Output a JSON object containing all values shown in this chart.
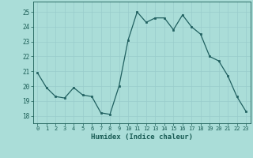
{
  "x": [
    0,
    1,
    2,
    3,
    4,
    5,
    6,
    7,
    8,
    9,
    10,
    11,
    12,
    13,
    14,
    15,
    16,
    17,
    18,
    19,
    20,
    21,
    22,
    23
  ],
  "y": [
    20.9,
    19.9,
    19.3,
    19.2,
    19.9,
    19.4,
    19.3,
    18.2,
    18.1,
    20.0,
    23.1,
    25.0,
    24.3,
    24.6,
    24.6,
    23.8,
    24.8,
    24.0,
    23.5,
    22.0,
    21.7,
    20.7,
    19.3,
    18.3
  ],
  "xlabel": "Humidex (Indice chaleur)",
  "ylim": [
    17.5,
    25.7
  ],
  "xlim": [
    -0.5,
    23.5
  ],
  "yticks": [
    18,
    19,
    20,
    21,
    22,
    23,
    24,
    25
  ],
  "xticks": [
    0,
    1,
    2,
    3,
    4,
    5,
    6,
    7,
    8,
    9,
    10,
    11,
    12,
    13,
    14,
    15,
    16,
    17,
    18,
    19,
    20,
    21,
    22,
    23
  ],
  "line_color": "#206060",
  "marker_color": "#206060",
  "bg_color": "#aaddd8",
  "grid_color": "#99cccc",
  "tick_color": "#1a5c55",
  "xlabel_color": "#1a5c55"
}
